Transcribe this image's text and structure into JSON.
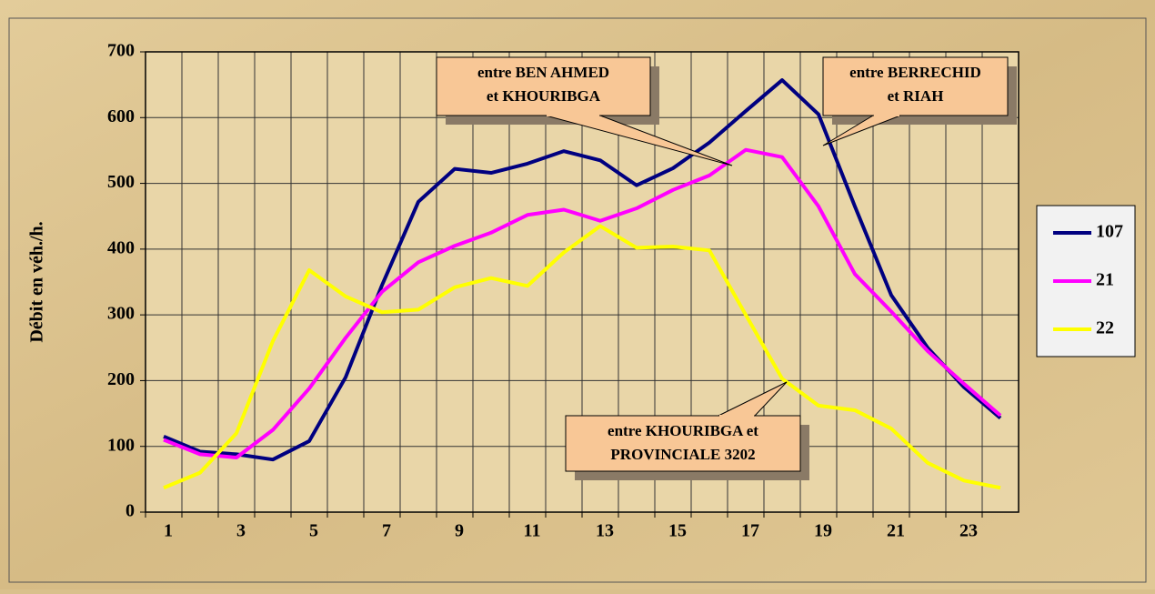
{
  "chart_data": {
    "type": "line",
    "y_label": "Débit en véh./h.",
    "categories": [
      1,
      null,
      3,
      null,
      5,
      null,
      7,
      null,
      9,
      null,
      11,
      null,
      13,
      null,
      15,
      null,
      17,
      null,
      19,
      null,
      21,
      null,
      23,
      null
    ],
    "series": [
      {
        "name": "107",
        "color": "#000080",
        "values": [
          115,
          92,
          88,
          80,
          108,
          205,
          345,
          472,
          522,
          516,
          530,
          549,
          535,
          497,
          523,
          562,
          610,
          657,
          605,
          465,
          330,
          250,
          190,
          143
        ]
      },
      {
        "name": "21",
        "color": "#ff00ff",
        "values": [
          110,
          88,
          83,
          125,
          188,
          265,
          335,
          380,
          405,
          425,
          452,
          460,
          443,
          462,
          490,
          512,
          551,
          540,
          465,
          362,
          305,
          245,
          195,
          147
        ]
      },
      {
        "name": "22",
        "color": "#ffff00",
        "values": [
          37,
          60,
          120,
          260,
          368,
          328,
          304,
          308,
          342,
          356,
          344,
          395,
          435,
          402,
          404,
          398,
          300,
          203,
          162,
          155,
          127,
          75,
          48,
          37
        ]
      }
    ],
    "ylim": [
      0,
      700
    ],
    "yticks": [
      0,
      100,
      200,
      300,
      400,
      500,
      600,
      700
    ],
    "grid": true,
    "legend": "right",
    "annotations": [
      {
        "lines": [
          "entre BEN AHMED",
          "et KHOURIBGA"
        ]
      },
      {
        "lines": [
          "entre BERRECHID",
          "et RIAH"
        ]
      },
      {
        "lines": [
          "entre KHOURIBGA  et",
          "PROVINCIALE 3202"
        ]
      }
    ]
  }
}
